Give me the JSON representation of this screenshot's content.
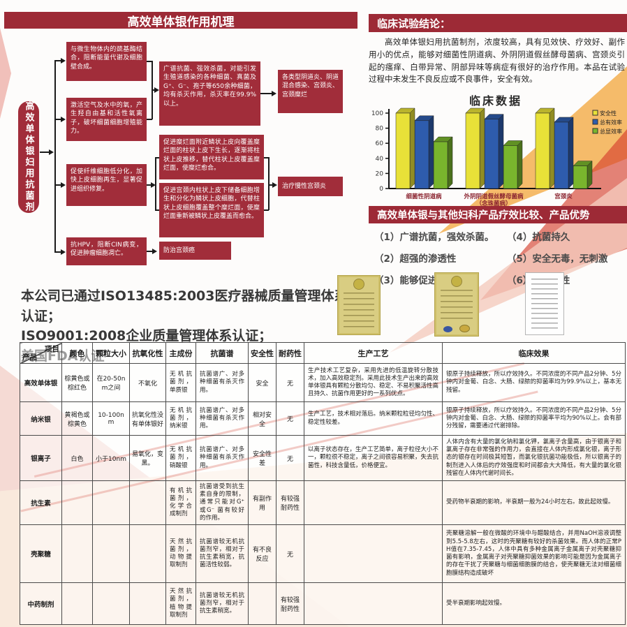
{
  "accent_color": "#9d2a36",
  "flowchart": {
    "title": "高效单体银作用机理",
    "capsule": "高效单体银妇用抗菌剂",
    "boxes": {
      "a": "与微生物体内的巯基酶结合，阻断能量代谢及细胞壁合成。",
      "b": "激活空气及水中的氧，产生羟自由基和活性氧离子，破坏细菌细胞增殖能力。",
      "c": "广谱抗菌、强效杀菌，对能引发生殖道感染的各种细菌、真菌及G⁺、G⁻、孢子等650余种细菌，均有杀灭作用，杀灭率在99.9%以上。",
      "d": "各类型阴道炎、阴道混合感染、宫颈炎、宫颈糜烂",
      "e": "促使纤维细胞低分化，加快上皮细胞再生，显著促进组织修复。",
      "f": "促进糜烂面附近鳞状上皮向覆盖糜烂面的柱状上皮下生长，逐渐将柱状上皮推移，替代柱状上皮覆盖糜烂面，使糜烂愈合。",
      "g": "促进宫颈内柱状上皮下储备细胞增生和分化为鳞状上皮细胞，代替柱状上皮细胞覆盖整个糜烂面，使糜烂面重新被鳞状上皮覆盖而愈合。",
      "h": "治疗慢性宫颈炎",
      "i": "抗HPV，阻断CIN病变，促进肿瘤细胞凋亡。",
      "j": "防治宫颈癌"
    }
  },
  "clinical": {
    "title": "临床试验结论：",
    "paragraph": "高效单体银妇用抗菌制剂，浓度较高，具有见效快、疗效好、副作用小的优点，能够对细菌性阴道病、外阴阴道假丝酵母菌病、宫颈炎引起的瘙痒、白带异常、阴部异味等病症有很好的治疗作用。本品在试验过程中未发生不良反应或不良事件，安全有效。"
  },
  "chart_data": {
    "type": "bar",
    "style": "3d",
    "title": "临床数据",
    "categories": [
      "细菌性阴道病",
      "外阴阴道假丝酵母菌病\n（念珠菌病）",
      "宫颈炎"
    ],
    "series": [
      {
        "name": "安全性",
        "color": "#e8e138",
        "values": [
          100,
          100,
          100
        ]
      },
      {
        "name": "总有效率",
        "color": "#2e5cad",
        "values": [
          90,
          92,
          88
        ]
      },
      {
        "name": "总显效率",
        "color": "#79b52d",
        "values": [
          62,
          57,
          30
        ]
      }
    ],
    "xlabel": "",
    "ylabel": "",
    "ylim": [
      0,
      100
    ],
    "yticks": [
      0,
      20,
      40,
      60,
      80,
      100
    ],
    "grid": false,
    "legend_position": "top-right"
  },
  "comparison": {
    "title": "高效单体银与其他妇科产品疗效比较、产品优势",
    "items": [
      "（1）广谱抗菌，强效杀菌。",
      "（2）超强的渗透性",
      "（3）能够促进愈合",
      "（4）抗菌持久",
      "（5）安全无毒，无刺激",
      "（6）无耐药性"
    ]
  },
  "certifications": {
    "lines": [
      "本公司已通过ISO13485:2003医疗器械质量管理体系认证；",
      "ISO9001:2008企业质量管理体系认证；",
      "美国FDA认证"
    ]
  },
  "table": {
    "corner": {
      "top": "项目",
      "bottom": "产品"
    },
    "columns": [
      "颜色",
      "颗粒大小",
      "抗氧化性",
      "主成份",
      "抗菌谱",
      "安全性",
      "耐药性",
      "生产工艺",
      "临床效果"
    ],
    "rows": [
      [
        "高效单体银",
        "棕黄色或棕红色",
        "在20-50nm之间",
        "不氧化",
        "无机抗菌剂，单质银",
        "抗菌谱广、对多种细菌有杀灭作用。",
        "安全",
        "无",
        "生产技术工艺复杂，采用先进的低温旋转分散技术，加入高效稳定剂。采用此技术生产出来的高效单体银具有颗粒分散均匀、稳定、不易积聚活性高且持久、抗菌作用更好的一系列优点。",
        "银原子持续释放，所以疗效持久。不同浓度的不同产品2分钟、5分钟内对金葡、白念、大肠、绿脓的抑菌率均为99.9%以上，基本无残留。"
      ],
      [
        "纳米银",
        "黄褐色或棕黄色",
        "10-100nm",
        "抗氧化性没有单体银好",
        "无机抗菌剂，纳米银",
        "抗菌谱广、对多种细菌有杀灭作用。",
        "相对安全",
        "无",
        "生产工艺，技术相对落后。纳米颗粒粒径均匀性、稳定性较差。",
        "银原子持续释放，所以疗效持久。不同浓度的不同产品2分钟、5分钟内对金葡、白念、大肠、绿脓的抑菌率平均为90%以上。会有部分残留，需要通过代谢排除。"
      ],
      [
        "银离子",
        "白色",
        "小于10nm",
        "易氧化，变黑。",
        "无机抗菌剂，硝酸银",
        "抗菌谱广、对多种细菌有杀灭作用。",
        "安全性差",
        "无",
        "以离子状态存在，生产工艺简单，离子粒径大小不一，颗粒很不稳定，离子之间很容易积聚，失去抗菌性，科技含量低，价格便宜。",
        "人体内含有大量的氯化钠和氯化钾，氯离子含量高，由于银离子和氯离子存在非常强的作用力，会直接在人体内形成氯化银，离子形态的银存在时间极其短暂，而氯化银抗菌功能极低，所以银离子的制剂进入人体后的疗效强度和时间都会大大降低，有大量的氯化银残留在人体内代谢时间长。"
      ],
      [
        "抗生素",
        "",
        "",
        "",
        "有机抗菌剂，化学合成制剂",
        "抗菌谱受到抗生素自身的限制，通常只能对G⁺ 或G⁻ 菌有较好的作用。",
        "有副作用",
        "有较强耐药性",
        "",
        "受药物半衰期的影响，半衰期一般为24小时左右。故此起效慢。"
      ],
      [
        "壳聚糖",
        "",
        "",
        "",
        "天然抗菌剂，动物提取制剂",
        "抗菌谱较无机抗菌剂窄，相对于抗生素稍宽，抗菌活性较弱。",
        "有不良反应",
        "无",
        "",
        "壳聚糖溶解一般在微酸的环境中与醋酸结合，并用NaOH溶液调整到5.5-5.8左右，这时的壳聚糖有较好的杀菌效果。而人体的正常PH值在7.35-7.45，人体中具有多种金属离子金属离子对壳聚糖抑菌有影响，金属离子对壳聚糖抑菌效果的影响可能是因为金属离子的存在干扰了壳聚糖与细菌细胞膜的结合，使壳聚糖无法对细菌细胞膜结构造成破坏"
      ],
      [
        "中药制剂",
        "",
        "",
        "",
        "天然抗菌剂，植物提取制剂",
        "抗菌谱较无机抗菌剂窄，相对于抗生素稍宽。",
        "",
        "有较强耐药性",
        "",
        "受半衰期影响起效慢。"
      ]
    ]
  }
}
